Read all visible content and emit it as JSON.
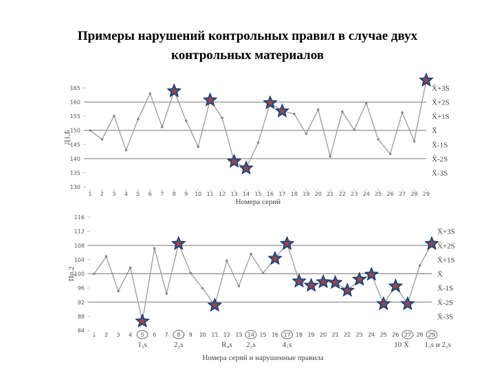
{
  "title": [
    "Примеры нарушений контрольных правил в случае двух",
    "контрольных материалов"
  ],
  "chart_data": [
    {
      "type": "line",
      "y_label": "Д1,Б",
      "x_label": "Номера серий",
      "x": [
        1,
        2,
        3,
        4,
        5,
        6,
        7,
        8,
        9,
        10,
        11,
        12,
        13,
        14,
        15,
        16,
        17,
        18,
        19,
        20,
        21,
        22,
        23,
        24,
        25,
        26,
        27,
        28,
        29
      ],
      "values": [
        150,
        146.8,
        155.1,
        143,
        154,
        163,
        151.2,
        163.9,
        153.4,
        144.2,
        160.7,
        154.4,
        139,
        136.6,
        145.6,
        159.7,
        156.8,
        155.8,
        148.8,
        157.3,
        140.8,
        156.6,
        150.2,
        159.7,
        146.8,
        141.7,
        156.3,
        146.1,
        167.7
      ],
      "color": "#999999",
      "xlim": [
        1,
        29
      ],
      "xticks": [
        1,
        2,
        3,
        4,
        5,
        6,
        7,
        8,
        9,
        10,
        11,
        12,
        13,
        14,
        15,
        16,
        17,
        18,
        19,
        20,
        21,
        22,
        23,
        24,
        25,
        26,
        27,
        28,
        29
      ],
      "ylim": [
        130,
        165
      ],
      "yticks": [
        130,
        135,
        140,
        145,
        150,
        155,
        160,
        165
      ],
      "highlight": [
        8,
        11,
        13,
        14,
        16,
        17,
        29
      ],
      "control_lines": [
        {
          "value": 165,
          "label": "X̄+3S",
          "line": false
        },
        {
          "value": 160,
          "label": "X̄+2S",
          "line": true
        },
        {
          "value": 155,
          "label": "X̄+1S",
          "line": false
        },
        {
          "value": 150,
          "label": "X̄",
          "line": true
        },
        {
          "value": 145,
          "label": "X̄-1S",
          "line": false
        },
        {
          "value": 140,
          "label": "X̄-2S",
          "line": true
        },
        {
          "value": 135,
          "label": "X̄-3S",
          "line": false
        }
      ]
    },
    {
      "type": "line",
      "y_label": "Пр.2",
      "x_label": "Номера серий и нарушенные правила",
      "x": [
        1,
        2,
        3,
        4,
        5,
        6,
        7,
        8,
        9,
        10,
        11,
        12,
        13,
        14,
        15,
        16,
        17,
        18,
        19,
        20,
        21,
        22,
        23,
        24,
        25,
        26,
        27,
        28,
        29
      ],
      "values": [
        100,
        104.9,
        95.1,
        101.7,
        86.6,
        107.2,
        94.4,
        108.5,
        100.2,
        95.9,
        91.1,
        103.7,
        96.5,
        105.6,
        100.2,
        104.3,
        108.5,
        97.9,
        96.7,
        97.7,
        97.5,
        95.3,
        98.4,
        99.8,
        91.5,
        96.5,
        91.5,
        102.3,
        108.5
      ],
      "color": "#999999",
      "xlim": [
        1,
        29
      ],
      "xticks": [
        1,
        2,
        3,
        4,
        5,
        6,
        7,
        8,
        9,
        10,
        11,
        12,
        13,
        14,
        15,
        16,
        17,
        18,
        19,
        20,
        21,
        22,
        23,
        24,
        25,
        26,
        27,
        28,
        29
      ],
      "ylim": [
        84,
        116
      ],
      "yticks": [
        84,
        88,
        92,
        96,
        100,
        104,
        108,
        112,
        116
      ],
      "highlight": [
        5,
        8,
        11,
        16,
        17,
        18,
        19,
        20,
        21,
        22,
        23,
        24,
        25,
        26,
        27,
        29
      ],
      "circled": [
        5,
        8,
        14,
        17,
        27,
        29
      ],
      "rules": [
        {
          "x": 5,
          "label": "1₃s"
        },
        {
          "x": 8,
          "label": "2₂s"
        },
        {
          "x": 12,
          "label": "R₄s"
        },
        {
          "x": 14,
          "label": "2₂s"
        },
        {
          "x": 17,
          "label": "4₁s"
        },
        {
          "x": 26.5,
          "label": "10 X̄"
        },
        {
          "x": 29.5,
          "label": "1₃s и 2₂s"
        }
      ],
      "control_lines": [
        {
          "value": 112,
          "label": "X̄+3S",
          "line": false
        },
        {
          "value": 108,
          "label": "X̄+2S",
          "line": true
        },
        {
          "value": 104,
          "label": "X̄+1S",
          "line": false
        },
        {
          "value": 100,
          "label": "X̄",
          "line": true
        },
        {
          "value": 96,
          "label": "X̄-1S",
          "line": false
        },
        {
          "value": 92,
          "label": "X̄-2S",
          "line": true
        },
        {
          "value": 88,
          "label": "X̄-3S",
          "line": false
        }
      ]
    }
  ]
}
